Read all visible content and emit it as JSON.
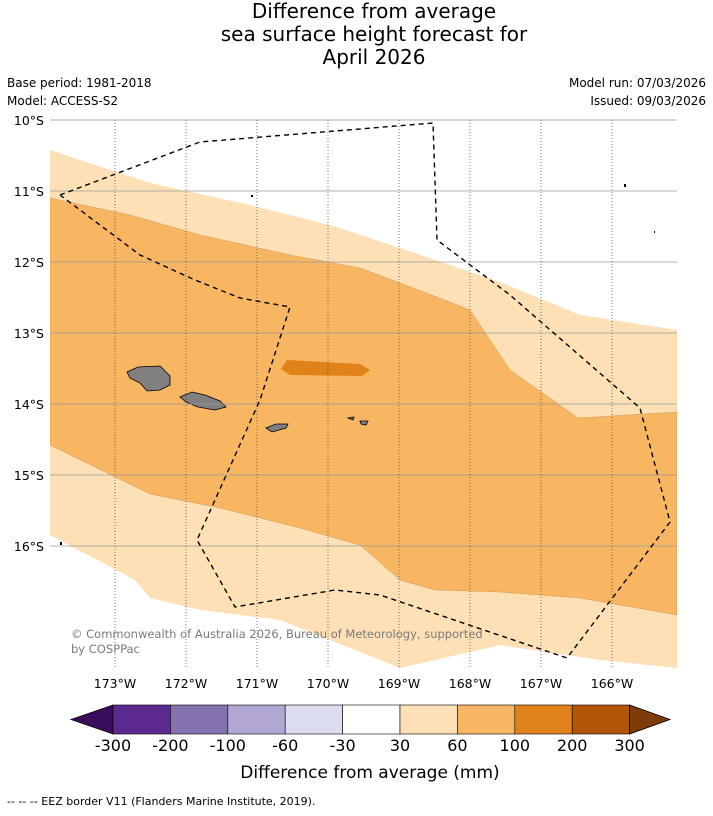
{
  "title": {
    "line1": "Difference from average",
    "line2": "sea surface height forecast for",
    "line3": "April 2026"
  },
  "meta": {
    "base_period": "Base period: 1981-2018",
    "model": "Model: ACCESS-S2",
    "model_run": "Model run: 07/03/2026",
    "issued": "Issued: 09/03/2026"
  },
  "map": {
    "lat_labels": [
      "10°S",
      "11°S",
      "12°S",
      "13°S",
      "14°S",
      "15°S",
      "16°S"
    ],
    "lon_labels": [
      "173°W",
      "172°W",
      "171°W",
      "170°W",
      "169°W",
      "168°W",
      "167°W",
      "166°W"
    ],
    "copyright_line1": "© Commonwealth of Australia 2026, Bureau of Meteorology, supported",
    "copyright_line2": "by COSPPac",
    "colors": {
      "band_30_60": "#fde0b5",
      "band_60_100": "#f8b562",
      "band_100_200": "#e0821a",
      "land": "#808080"
    }
  },
  "colorbar": {
    "ticks": [
      "-300",
      "-200",
      "-100",
      "-60",
      "-30",
      "30",
      "60",
      "100",
      "200",
      "300"
    ],
    "colors": [
      "#3b0d5e",
      "#5c2a8e",
      "#8472b0",
      "#b1a7d2",
      "#dcdcef",
      "#ffffff",
      "#fde0b5",
      "#f8b562",
      "#e0821a",
      "#b35506",
      "#7e3c0b"
    ],
    "label": "Difference from average (mm)"
  },
  "footnote": "-- -- -- EEZ border V11 (Flanders Marine Institute, 2019)."
}
